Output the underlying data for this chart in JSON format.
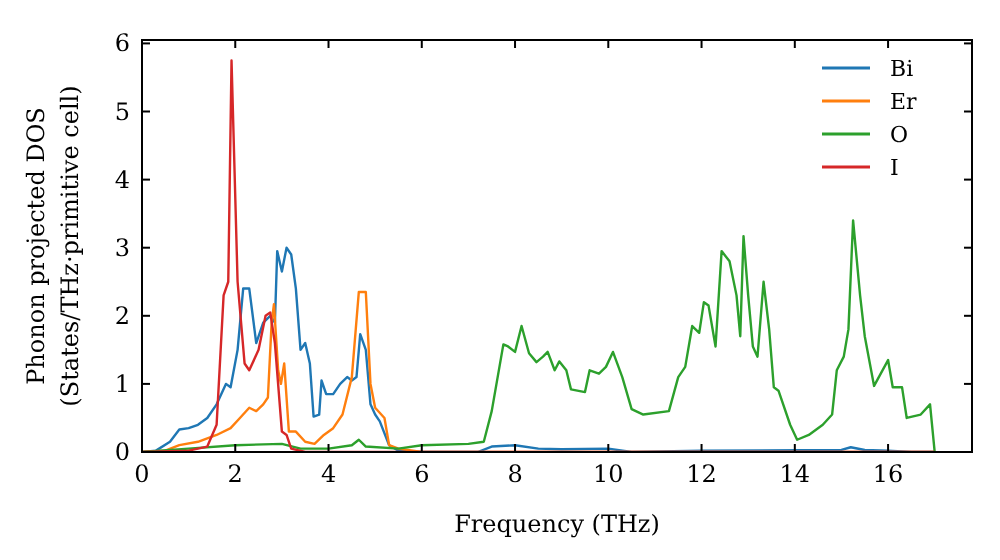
{
  "chart_data": {
    "type": "line",
    "xlabel": "Frequency (THz)",
    "ylabel": "Phonon projected DOS\n(States/THz·primitive cell)",
    "xlim": [
      0,
      17.8
    ],
    "ylim": [
      0,
      6.05
    ],
    "xticks": [
      0,
      2,
      4,
      6,
      8,
      10,
      12,
      14,
      16
    ],
    "yticks": [
      0,
      1,
      2,
      3,
      4,
      5,
      6
    ],
    "grid": false,
    "legend": "top right",
    "marker": "none",
    "line_style": "solid",
    "series": [
      {
        "name": "Bi",
        "color": "#1f77b4",
        "x": [
          0,
          0.3,
          0.6,
          0.8,
          1.0,
          1.2,
          1.4,
          1.6,
          1.8,
          1.9,
          2.05,
          2.17,
          2.3,
          2.45,
          2.6,
          2.75,
          2.85,
          2.9,
          3.0,
          3.1,
          3.2,
          3.3,
          3.4,
          3.5,
          3.6,
          3.68,
          3.8,
          3.85,
          3.95,
          4.1,
          4.25,
          4.4,
          4.5,
          4.6,
          4.68,
          4.8,
          4.9,
          5.0,
          5.1,
          5.3,
          5.5,
          6,
          7.2,
          7.5,
          8,
          8.5,
          9,
          10,
          10.5,
          12,
          15,
          15.2,
          15.5,
          16,
          16.5,
          17
        ],
        "values": [
          0,
          0.02,
          0.15,
          0.33,
          0.35,
          0.4,
          0.5,
          0.7,
          1.0,
          0.95,
          1.5,
          2.4,
          2.4,
          1.6,
          1.9,
          2.0,
          1.9,
          2.95,
          2.65,
          3.0,
          2.9,
          2.4,
          1.5,
          1.6,
          1.3,
          0.52,
          0.55,
          1.05,
          0.85,
          0.85,
          1.0,
          1.1,
          1.05,
          1.1,
          1.73,
          1.5,
          0.7,
          0.55,
          0.45,
          0.1,
          0.02,
          0,
          0,
          0.08,
          0.1,
          0.05,
          0.04,
          0.05,
          0,
          0.02,
          0.03,
          0.07,
          0.03,
          0.02,
          0,
          0
        ]
      },
      {
        "name": "Er",
        "color": "#ff7f0e",
        "x": [
          0,
          0.5,
          0.8,
          1.2,
          1.6,
          1.9,
          2.1,
          2.3,
          2.45,
          2.6,
          2.7,
          2.78,
          2.83,
          2.92,
          2.98,
          3.05,
          3.15,
          3.3,
          3.5,
          3.7,
          3.9,
          4.1,
          4.3,
          4.5,
          4.65,
          4.8,
          4.9,
          5.0,
          5.2,
          5.3,
          5.5,
          6,
          17
        ],
        "values": [
          0,
          0.02,
          0.1,
          0.15,
          0.25,
          0.35,
          0.5,
          0.65,
          0.6,
          0.7,
          0.8,
          1.9,
          2.17,
          1.2,
          1.0,
          1.3,
          0.3,
          0.3,
          0.15,
          0.12,
          0.25,
          0.35,
          0.55,
          1.1,
          2.35,
          2.35,
          1.0,
          0.65,
          0.5,
          0.1,
          0.05,
          0,
          0
        ]
      },
      {
        "name": "O",
        "color": "#2ca02c",
        "x": [
          0,
          1.0,
          2,
          3,
          3.4,
          4,
          4.5,
          4.65,
          4.8,
          5.5,
          6,
          7,
          7.33,
          7.5,
          7.75,
          7.85,
          8.0,
          8.14,
          8.3,
          8.46,
          8.6,
          8.7,
          8.85,
          8.95,
          9.1,
          9.2,
          9.5,
          9.6,
          9.8,
          9.95,
          10.1,
          10.3,
          10.5,
          10.75,
          11.3,
          11.5,
          11.65,
          11.8,
          11.95,
          12.05,
          12.15,
          12.3,
          12.43,
          12.6,
          12.75,
          12.83,
          12.9,
          13.0,
          13.1,
          13.2,
          13.33,
          13.45,
          13.55,
          13.65,
          13.9,
          14.05,
          14.3,
          14.6,
          14.8,
          14.9,
          15.05,
          15.15,
          15.25,
          15.4,
          15.5,
          15.7,
          16.0,
          16.1,
          16.3,
          16.4,
          16.7,
          16.9,
          17.0
        ],
        "values": [
          0,
          0.05,
          0.1,
          0.12,
          0.05,
          0.05,
          0.1,
          0.18,
          0.08,
          0.05,
          0.1,
          0.12,
          0.15,
          0.6,
          1.58,
          1.55,
          1.47,
          1.85,
          1.45,
          1.32,
          1.4,
          1.47,
          1.2,
          1.33,
          1.2,
          0.92,
          0.88,
          1.2,
          1.15,
          1.25,
          1.47,
          1.1,
          0.63,
          0.55,
          0.6,
          1.1,
          1.25,
          1.85,
          1.75,
          2.2,
          2.15,
          1.55,
          2.95,
          2.8,
          2.3,
          1.7,
          3.17,
          2.3,
          1.55,
          1.4,
          2.5,
          1.8,
          0.95,
          0.9,
          0.4,
          0.18,
          0.25,
          0.4,
          0.55,
          1.2,
          1.4,
          1.8,
          3.4,
          2.3,
          1.7,
          0.97,
          1.35,
          0.95,
          0.95,
          0.5,
          0.55,
          0.7,
          0
        ]
      },
      {
        "name": "I",
        "color": "#d62728",
        "x": [
          0,
          1.0,
          1.4,
          1.6,
          1.75,
          1.85,
          1.92,
          2.05,
          2.2,
          2.3,
          2.5,
          2.65,
          2.75,
          2.85,
          3.0,
          3.1,
          3.2,
          3.5,
          17
        ],
        "values": [
          0,
          0.02,
          0.08,
          0.4,
          2.3,
          2.5,
          5.75,
          2.5,
          1.3,
          1.2,
          1.5,
          2.0,
          2.05,
          1.6,
          0.3,
          0.25,
          0.05,
          0,
          0
        ]
      }
    ]
  }
}
